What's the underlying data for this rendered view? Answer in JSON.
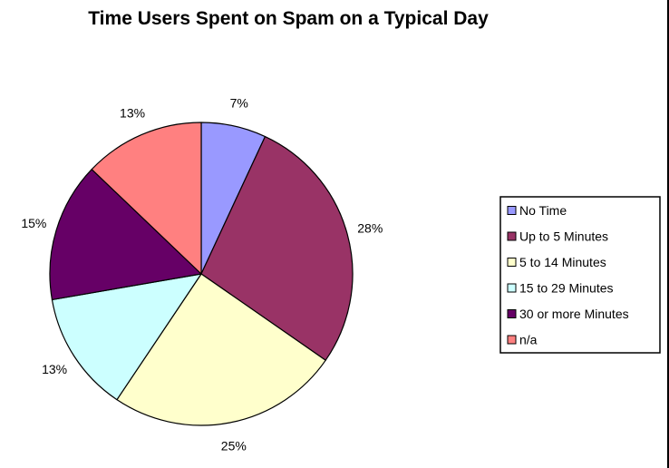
{
  "chart_data": {
    "type": "pie",
    "title": "Time Users Spent on Spam on a Typical Day",
    "categories": [
      "No Time",
      "Up to 5 Minutes",
      "5 to 14 Minutes",
      "15 to 29 Minutes",
      "30 or more Minutes",
      "n/a"
    ],
    "values": [
      7,
      28,
      25,
      13,
      15,
      13
    ],
    "labels": [
      "7%",
      "28%",
      "25%",
      "13%",
      "15%",
      "13%"
    ],
    "colors": [
      "#9999FF",
      "#993366",
      "#FFFFCC",
      "#CCFFFF",
      "#660066",
      "#FF8080"
    ],
    "legend_position": "right",
    "start_angle": "12 o'clock",
    "direction": "clockwise"
  }
}
